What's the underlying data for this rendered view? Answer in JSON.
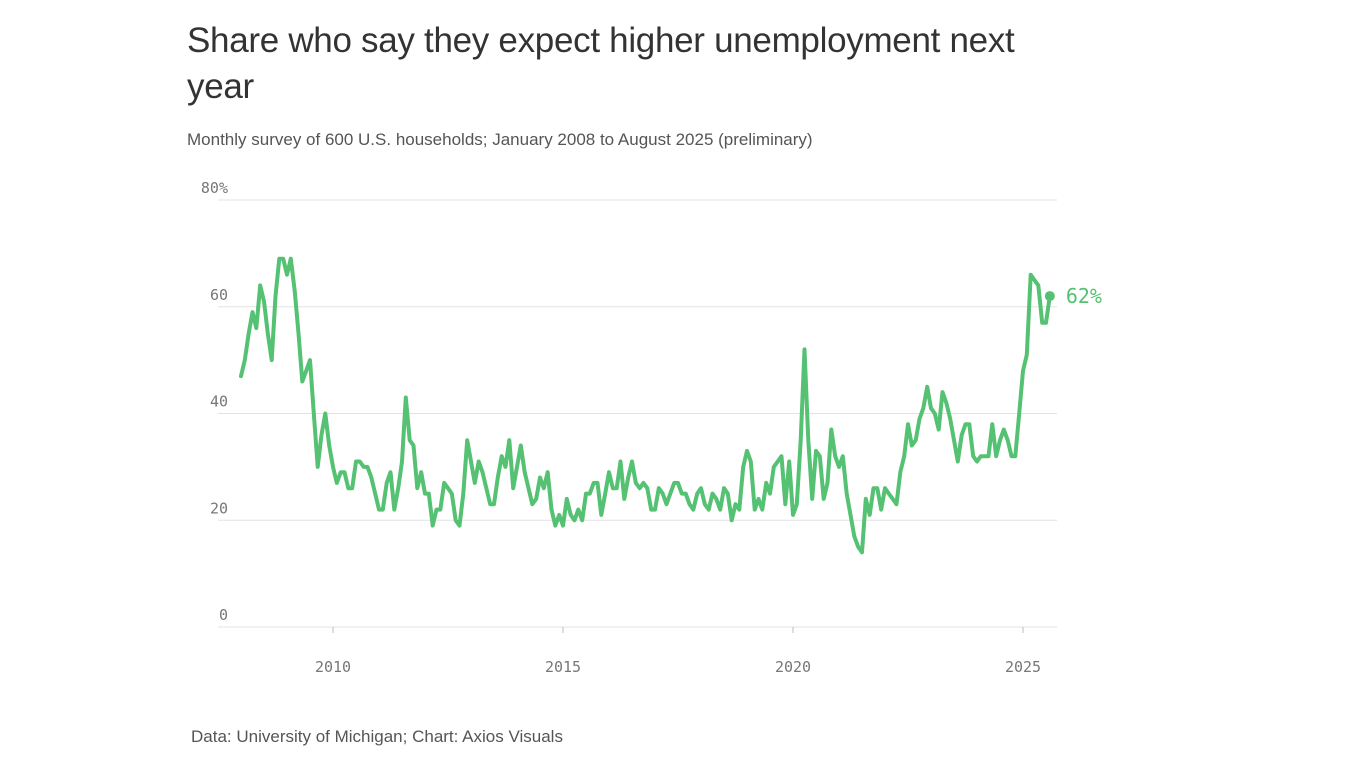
{
  "title": "Share who say they expect higher unemployment next year",
  "subtitle": "Monthly survey of 600 U.S. households; January 2008 to August 2025 (preliminary)",
  "source": "Data: University of Michigan; Chart: Axios Visuals",
  "colors": {
    "line": "#55c172",
    "grid": "#e3e3e3",
    "tick": "#777777"
  },
  "chart_data": {
    "type": "line",
    "x_start": "2008-01",
    "x_end": "2025-08",
    "frequency": "monthly",
    "ylim": [
      0,
      80
    ],
    "yticks": [
      0,
      20,
      40,
      60,
      80
    ],
    "ytick_labels": [
      "0",
      "20",
      "40",
      "60",
      "80%"
    ],
    "xticks": [
      2010,
      2015,
      2020,
      2025
    ],
    "xtick_labels": [
      "2010",
      "2015",
      "2020",
      "2025"
    ],
    "grid": true,
    "end_label": "62%",
    "values": [
      47,
      50,
      55,
      59,
      56,
      64,
      61,
      55,
      50,
      62,
      69,
      69,
      66,
      69,
      63,
      55,
      46,
      48,
      50,
      40,
      30,
      36,
      40,
      34,
      30,
      27,
      29,
      29,
      26,
      26,
      31,
      31,
      30,
      30,
      28,
      25,
      22,
      22,
      27,
      29,
      22,
      26,
      31,
      43,
      35,
      34,
      26,
      29,
      25,
      25,
      19,
      22,
      22,
      27,
      26,
      25,
      20,
      19,
      25,
      35,
      31,
      27,
      31,
      29,
      26,
      23,
      23,
      28,
      32,
      30,
      35,
      26,
      30,
      34,
      29,
      26,
      23,
      24,
      28,
      26,
      29,
      22,
      19,
      21,
      19,
      24,
      21,
      20,
      22,
      20,
      25,
      25,
      27,
      27,
      21,
      25,
      29,
      26,
      26,
      31,
      24,
      28,
      31,
      27,
      26,
      27,
      26,
      22,
      22,
      26,
      25,
      23,
      25,
      27,
      27,
      25,
      25,
      23,
      22,
      25,
      26,
      23,
      22,
      25,
      24,
      22,
      26,
      25,
      20,
      23,
      22,
      30,
      33,
      31,
      22,
      24,
      22,
      27,
      25,
      30,
      31,
      32,
      23,
      31,
      21,
      23,
      35,
      52,
      35,
      24,
      33,
      32,
      24,
      27,
      37,
      32,
      30,
      32,
      25,
      21,
      17,
      15,
      14,
      24,
      21,
      26,
      26,
      22,
      26,
      25,
      24,
      23,
      29,
      32,
      38,
      34,
      35,
      39,
      41,
      45,
      41,
      40,
      37,
      44,
      42,
      39,
      35,
      31,
      36,
      38,
      38,
      32,
      31,
      32,
      32,
      32,
      38,
      32,
      35,
      37,
      35,
      32,
      32,
      40,
      48,
      51,
      66,
      65,
      64,
      57,
      57,
      62
    ]
  }
}
